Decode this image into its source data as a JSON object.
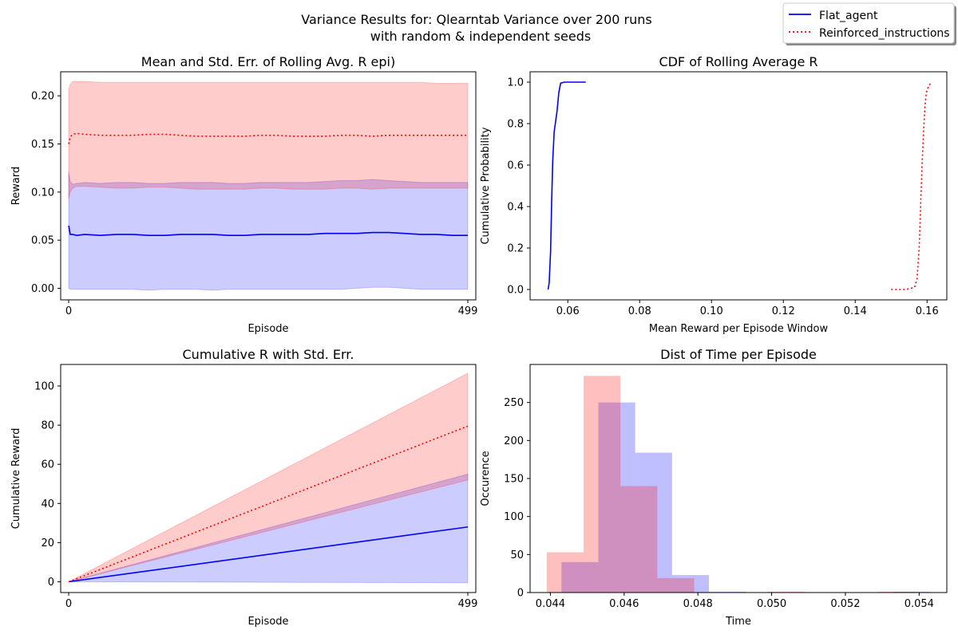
{
  "figure": {
    "suptitle_line1": "Variance Results for: Qlearntab Variance over 200 runs",
    "suptitle_line2": "with random & independent seeds",
    "legend": [
      {
        "label": "Flat_agent",
        "color": "#0000ff",
        "style": "solid"
      },
      {
        "label": "Reinforced_instructions",
        "color": "#ff0000",
        "style": "dotted"
      }
    ]
  },
  "chart_data": [
    {
      "id": "rolling",
      "type": "line",
      "title": "Mean and Std. Err. of Rolling Avg. R epi)",
      "xlabel": "Episode",
      "ylabel": "Reward",
      "xlim": [
        -10,
        509
      ],
      "ylim": [
        -0.012,
        0.225
      ],
      "xticks": [
        0,
        499
      ],
      "xticklabels": [
        "0",
        "499"
      ],
      "yticks": [
        0.0,
        0.05,
        0.1,
        0.15,
        0.2
      ],
      "yticklabels": [
        "0.00",
        "0.05",
        "0.10",
        "0.15",
        "0.20"
      ],
      "series": [
        {
          "name": "Flat_agent",
          "color": "#0000ff",
          "x": [
            0,
            2,
            5,
            10,
            20,
            40,
            60,
            80,
            100,
            120,
            140,
            160,
            180,
            200,
            220,
            240,
            260,
            280,
            300,
            320,
            340,
            360,
            380,
            400,
            420,
            440,
            460,
            480,
            499
          ],
          "mean": [
            0.065,
            0.056,
            0.056,
            0.055,
            0.056,
            0.055,
            0.056,
            0.056,
            0.055,
            0.055,
            0.056,
            0.056,
            0.056,
            0.055,
            0.055,
            0.056,
            0.056,
            0.056,
            0.056,
            0.057,
            0.057,
            0.057,
            0.058,
            0.058,
            0.057,
            0.056,
            0.056,
            0.055,
            0.055
          ],
          "upper": [
            0.121,
            0.111,
            0.108,
            0.109,
            0.11,
            0.109,
            0.11,
            0.11,
            0.109,
            0.109,
            0.11,
            0.11,
            0.11,
            0.109,
            0.109,
            0.11,
            0.11,
            0.11,
            0.11,
            0.111,
            0.112,
            0.112,
            0.113,
            0.112,
            0.111,
            0.11,
            0.11,
            0.11,
            0.11
          ],
          "lower": [
            0.0,
            -0.001,
            -0.001,
            -0.001,
            -0.001,
            -0.001,
            -0.001,
            -0.001,
            -0.002,
            -0.001,
            -0.001,
            -0.001,
            -0.002,
            -0.001,
            -0.001,
            -0.001,
            -0.001,
            -0.001,
            -0.001,
            -0.001,
            -0.001,
            0.0,
            0.001,
            0.001,
            0.0,
            -0.001,
            -0.001,
            -0.001,
            -0.001
          ]
        },
        {
          "name": "Reinforced_instructions",
          "color": "#ff0000",
          "x": [
            0,
            2,
            5,
            10,
            20,
            40,
            60,
            80,
            100,
            120,
            140,
            160,
            180,
            200,
            220,
            240,
            260,
            280,
            300,
            320,
            340,
            360,
            380,
            400,
            420,
            440,
            460,
            480,
            499
          ],
          "mean": [
            0.15,
            0.157,
            0.16,
            0.161,
            0.16,
            0.159,
            0.159,
            0.159,
            0.16,
            0.16,
            0.159,
            0.158,
            0.158,
            0.158,
            0.158,
            0.159,
            0.159,
            0.158,
            0.158,
            0.158,
            0.159,
            0.159,
            0.158,
            0.159,
            0.159,
            0.159,
            0.159,
            0.159,
            0.159
          ],
          "upper": [
            0.206,
            0.212,
            0.215,
            0.215,
            0.215,
            0.214,
            0.214,
            0.214,
            0.214,
            0.214,
            0.214,
            0.214,
            0.214,
            0.214,
            0.214,
            0.214,
            0.214,
            0.214,
            0.214,
            0.214,
            0.214,
            0.214,
            0.214,
            0.214,
            0.214,
            0.214,
            0.213,
            0.213,
            0.213
          ],
          "lower": [
            0.093,
            0.1,
            0.104,
            0.106,
            0.106,
            0.105,
            0.104,
            0.104,
            0.105,
            0.105,
            0.104,
            0.103,
            0.103,
            0.103,
            0.103,
            0.104,
            0.104,
            0.103,
            0.103,
            0.103,
            0.104,
            0.104,
            0.103,
            0.104,
            0.104,
            0.104,
            0.104,
            0.104,
            0.104
          ]
        }
      ]
    },
    {
      "id": "cdf",
      "type": "line",
      "title": "CDF of Rolling Average R",
      "xlabel": "Mean Reward per Episode Window",
      "ylabel": "Cumulative Probability",
      "xlim": [
        0.0495,
        0.1655
      ],
      "ylim": [
        -0.05,
        1.05
      ],
      "xticks": [
        0.06,
        0.08,
        0.1,
        0.12,
        0.14,
        0.16
      ],
      "xticklabels": [
        "0.06",
        "0.08",
        "0.10",
        "0.12",
        "0.14",
        "0.16"
      ],
      "yticks": [
        0.0,
        0.2,
        0.4,
        0.6,
        0.8,
        1.0
      ],
      "yticklabels": [
        "0.0",
        "0.2",
        "0.4",
        "0.6",
        "0.8",
        "1.0"
      ],
      "series": [
        {
          "name": "Flat_agent",
          "color": "#0000ff",
          "x": [
            0.0545,
            0.0548,
            0.0552,
            0.0555,
            0.0558,
            0.0562,
            0.0566,
            0.057,
            0.0575,
            0.058,
            0.059,
            0.062,
            0.065
          ],
          "y": [
            0.0,
            0.03,
            0.18,
            0.42,
            0.62,
            0.76,
            0.81,
            0.86,
            0.95,
            0.995,
            1.0,
            1.0,
            1.0
          ]
        },
        {
          "name": "Reinforced_instructions",
          "color": "#ff0000",
          "x": [
            0.15,
            0.154,
            0.1565,
            0.1572,
            0.1578,
            0.1582,
            0.1586,
            0.159,
            0.1594,
            0.1598,
            0.1604,
            0.1612
          ],
          "y": [
            0.0,
            0.0,
            0.01,
            0.05,
            0.2,
            0.4,
            0.6,
            0.75,
            0.88,
            0.95,
            0.98,
            1.0
          ]
        }
      ]
    },
    {
      "id": "cumulative",
      "type": "line",
      "title": "Cumulative R with Std. Err.",
      "xlabel": "Episode",
      "ylabel": "Cumulative Reward",
      "xlim": [
        -10,
        509
      ],
      "ylim": [
        -5.5,
        111
      ],
      "xticks": [
        0,
        499
      ],
      "xticklabels": [
        "0",
        "499"
      ],
      "yticks": [
        0,
        20,
        40,
        60,
        80,
        100
      ],
      "yticklabels": [
        "0",
        "20",
        "40",
        "60",
        "80",
        "100"
      ],
      "series": [
        {
          "name": "Flat_agent",
          "color": "#0000ff",
          "x": [
            0,
            499
          ],
          "mean": [
            0,
            28
          ],
          "upper": [
            0,
            55
          ],
          "lower": [
            0,
            -0.5
          ]
        },
        {
          "name": "Reinforced_instructions",
          "color": "#ff0000",
          "x": [
            0,
            499
          ],
          "mean": [
            0,
            79.5
          ],
          "upper": [
            0,
            106.5
          ],
          "lower": [
            0,
            52
          ]
        }
      ]
    },
    {
      "id": "hist",
      "type": "bar",
      "title": "Dist of Time per Episode",
      "xlabel": "Time",
      "ylabel": "Occurence",
      "xlim": [
        0.04345,
        0.05475
      ],
      "ylim": [
        0,
        300
      ],
      "xticks": [
        0.044,
        0.046,
        0.048,
        0.05,
        0.052,
        0.054
      ],
      "xticklabels": [
        "0.044",
        "0.046",
        "0.048",
        "0.050",
        "0.052",
        "0.054"
      ],
      "yticks": [
        0,
        50,
        100,
        150,
        200,
        250
      ],
      "yticklabels": [
        "0",
        "50",
        "100",
        "150",
        "200",
        "250"
      ],
      "series": [
        {
          "name": "Flat_agent",
          "color": "#0000ff",
          "edges": [
            0.0443,
            0.0453,
            0.0463,
            0.0473,
            0.0483,
            0.0493,
            0.0503,
            0.0513,
            0.0523,
            0.0533,
            0.0543
          ],
          "values": [
            40,
            250,
            184,
            23,
            1,
            0,
            0,
            0,
            0,
            1
          ]
        },
        {
          "name": "Reinforced_instructions",
          "color": "#ff0000",
          "edges": [
            0.0439,
            0.0449,
            0.0459,
            0.0469,
            0.0479,
            0.0489,
            0.0499,
            0.0509,
            0.0519,
            0.0529,
            0.0539
          ],
          "values": [
            53,
            285,
            140,
            19,
            0,
            0,
            1,
            0,
            0,
            1
          ]
        }
      ]
    }
  ]
}
